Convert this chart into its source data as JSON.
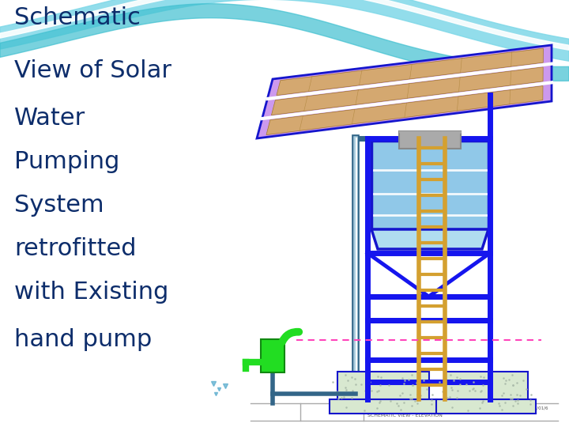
{
  "title_lines": [
    "Schematic",
    "View of Solar",
    "Water",
    "Pumping",
    "System",
    "retrofitted",
    "with Existing",
    "hand pump"
  ],
  "title_color": "#0d2d6b",
  "title_fontsize": 22,
  "bg_color": "#ffffff",
  "wave_color1": "#7fd8e8",
  "wave_color2": "#40c0d0",
  "wave_color3": "#ffffff",
  "panel_color": "#cc99ee",
  "panel_cell_color": "#d4a870",
  "panel_outline_color": "#1515cc",
  "tank_color_top": "#90c8e8",
  "tank_color_bot": "#b0ddf0",
  "tank_outline": "#1515cc",
  "structure_color": "#1515ee",
  "ladder_color": "#d4a030",
  "ground_color": "#d8e8d0",
  "ground_outline": "#1515cc",
  "hand_pump_color": "#22dd22",
  "hand_pump_dark": "#118811",
  "pipe_color": "#5599bb",
  "pipe_outline": "#336688",
  "dashed_line_color": "#ff44bb",
  "footer_line_color": "#aaaaaa",
  "footer_text_color": "#555555",
  "splash_color": "#55aacc",
  "soil_dot_color": "#aabbaa"
}
